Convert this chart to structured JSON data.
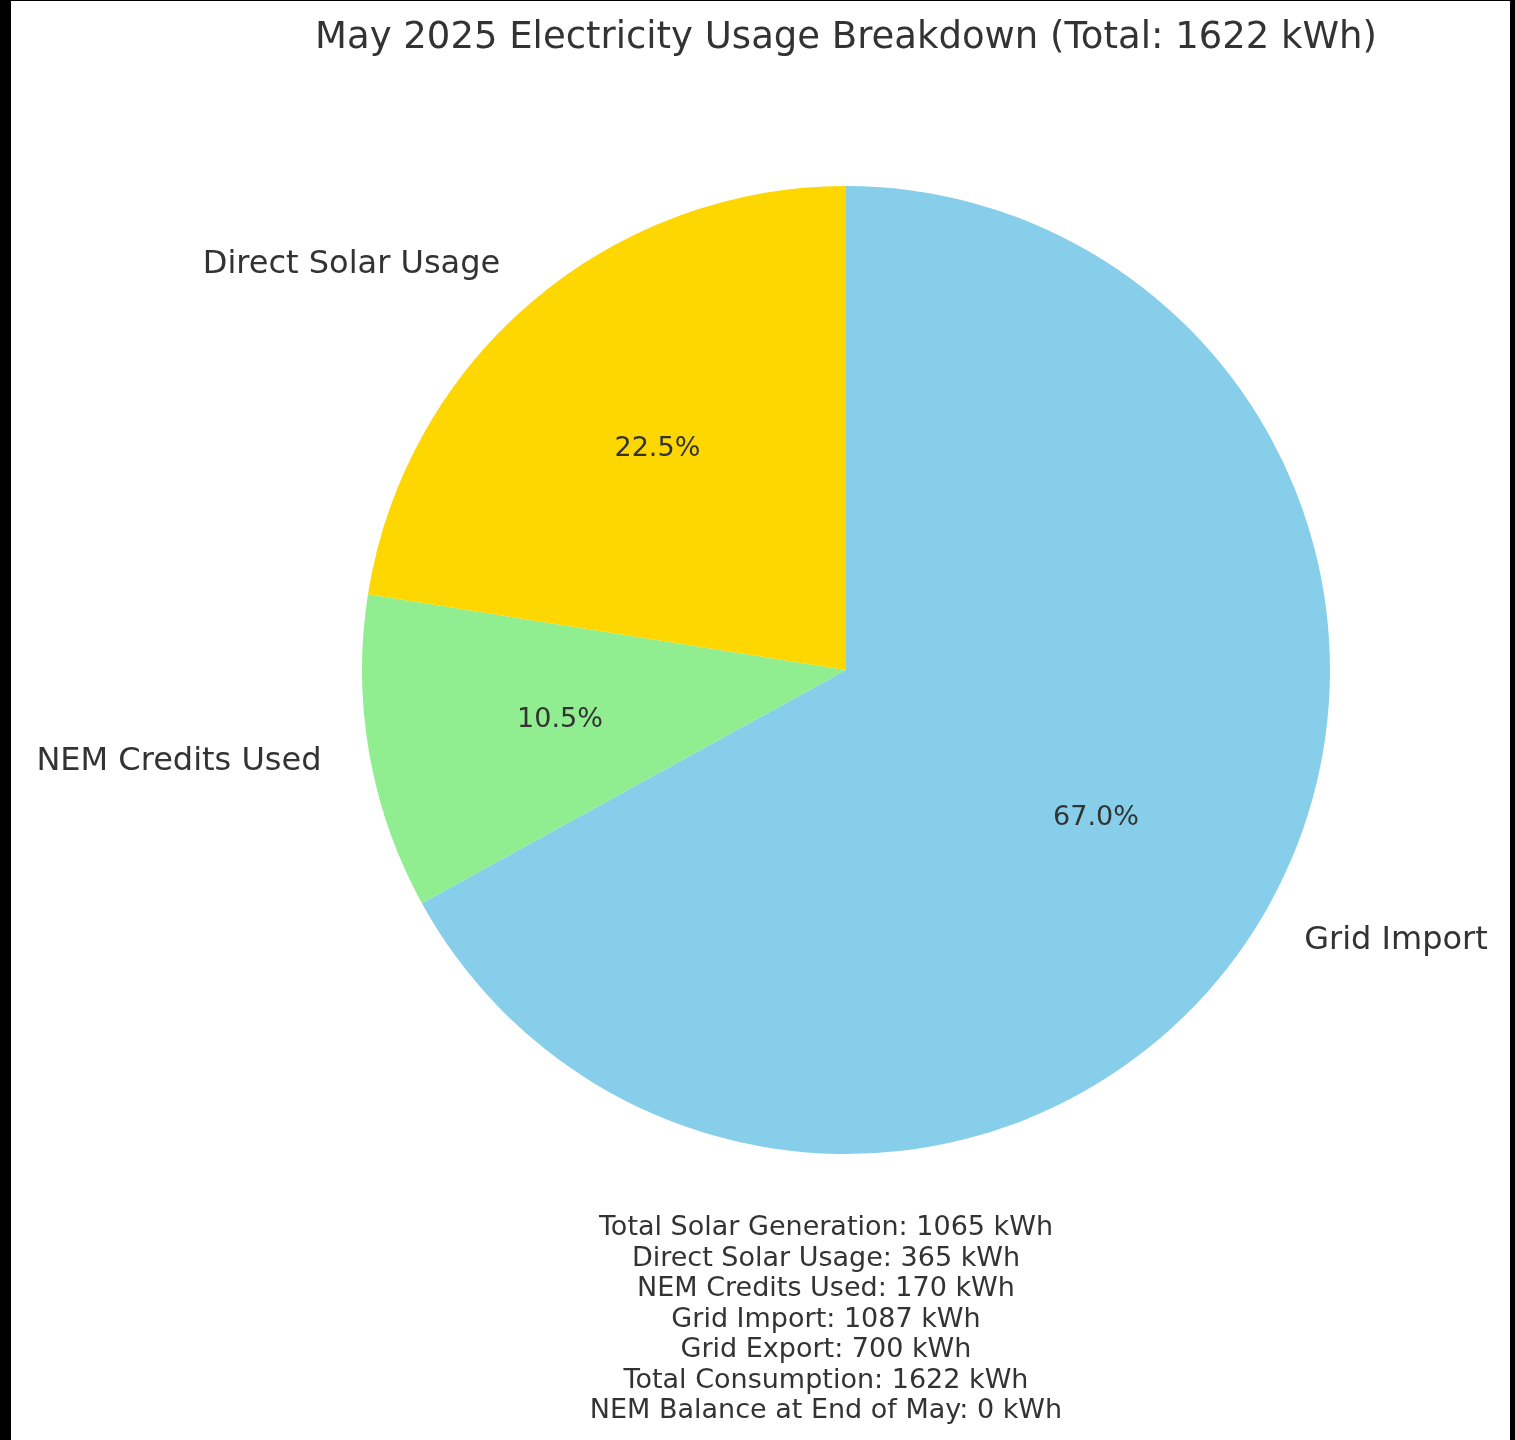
{
  "chart_data": {
    "type": "pie",
    "title": "May 2025 Electricity Usage Breakdown (Total: 1622 kWh)",
    "categories": [
      "Direct Solar Usage",
      "NEM Credits Used",
      "Grid Import"
    ],
    "values": [
      22.5,
      10.5,
      67.0
    ],
    "colors": [
      "#ffd700",
      "#90ee90",
      "#87ceeb"
    ],
    "value_labels": [
      "22.5%",
      "10.5%",
      "67.0%"
    ],
    "annotations": [
      "Total Solar Generation: 1065 kWh",
      "Direct Solar Usage: 365 kWh",
      "NEM Credits Used: 170 kWh",
      "Grid Import: 1087 kWh",
      "Grid Export: 700 kWh",
      "Total Consumption: 1622 kWh",
      "NEM Balance at End of May: 0 kWh"
    ]
  }
}
